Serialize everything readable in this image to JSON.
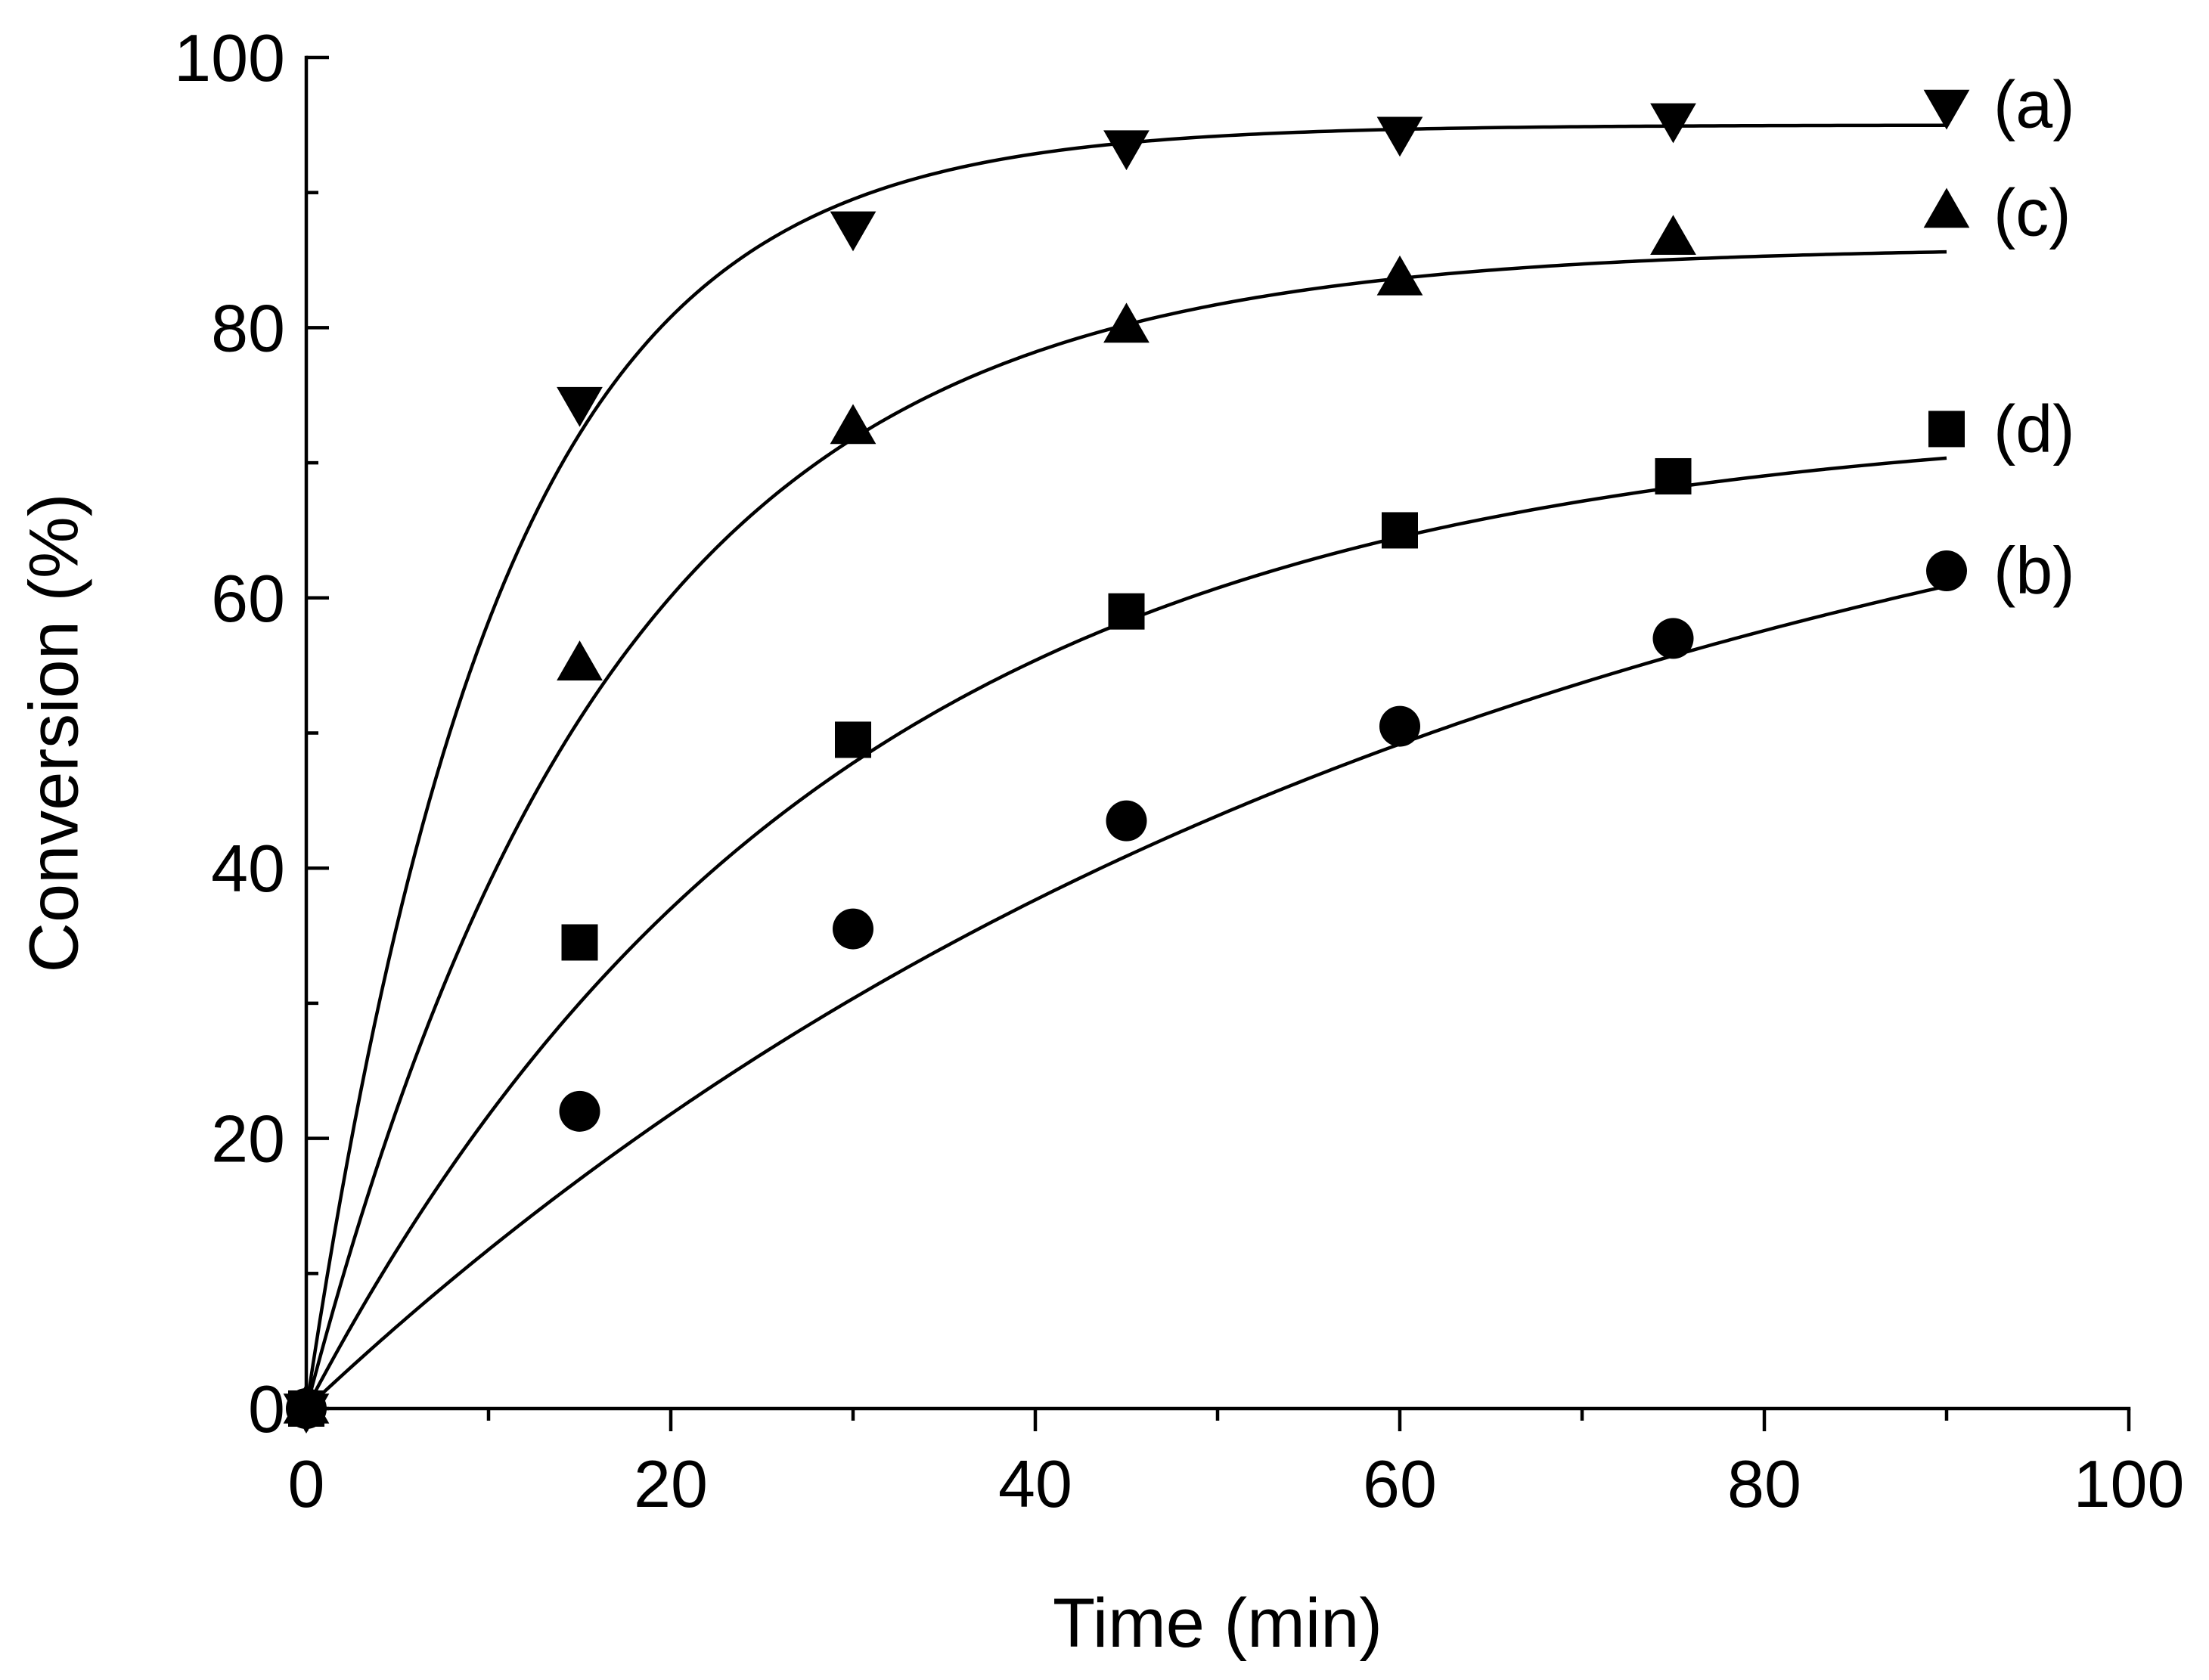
{
  "chart_data": {
    "type": "scatter",
    "title": "",
    "xlabel": "Time (min)",
    "ylabel": "Conversion (%)",
    "xlim": [
      0,
      100
    ],
    "ylim": [
      0,
      100
    ],
    "x_major_ticks": [
      0,
      20,
      40,
      60,
      80,
      100
    ],
    "y_major_ticks": [
      0,
      20,
      40,
      60,
      80,
      100
    ],
    "x_tick_labels": [
      "0",
      "20",
      "40",
      "60",
      "80",
      "100"
    ],
    "y_tick_labels": [
      "0",
      "20",
      "40",
      "60",
      "80",
      "100"
    ],
    "grid": false,
    "series": [
      {
        "name": "(a)",
        "label": "(a)",
        "marker": "triangle-down",
        "x": [
          0,
          15,
          30,
          45,
          60,
          75,
          90
        ],
        "y": [
          0,
          74.5,
          87.5,
          93.5,
          94.5,
          95.5,
          96.5
        ],
        "fit": {
          "model": "exponential",
          "ymax": 95,
          "k": 0.095
        }
      },
      {
        "name": "(c)",
        "label": "(c)",
        "marker": "triangle-up",
        "x": [
          0,
          15,
          30,
          45,
          60,
          75,
          90
        ],
        "y": [
          0,
          55,
          72.5,
          80,
          83.5,
          86.5,
          88.5
        ],
        "fit": {
          "model": "exponential",
          "ymax": 86,
          "k": 0.06
        }
      },
      {
        "name": "(d)",
        "label": "(d)",
        "marker": "square",
        "x": [
          0,
          15,
          30,
          45,
          60,
          75,
          90
        ],
        "y": [
          0,
          34.5,
          49.5,
          59,
          65,
          69,
          72.5
        ],
        "fit": {
          "model": "exponential",
          "ymax": 73.5,
          "k": 0.035
        }
      },
      {
        "name": "(b)",
        "label": "(b)",
        "marker": "circle",
        "x": [
          0,
          15,
          30,
          45,
          60,
          75,
          90
        ],
        "y": [
          0,
          22,
          35.5,
          43.5,
          50.5,
          57,
          62
        ],
        "fit": {
          "model": "exponential",
          "ymax": 80,
          "k": 0.0159
        }
      }
    ]
  }
}
